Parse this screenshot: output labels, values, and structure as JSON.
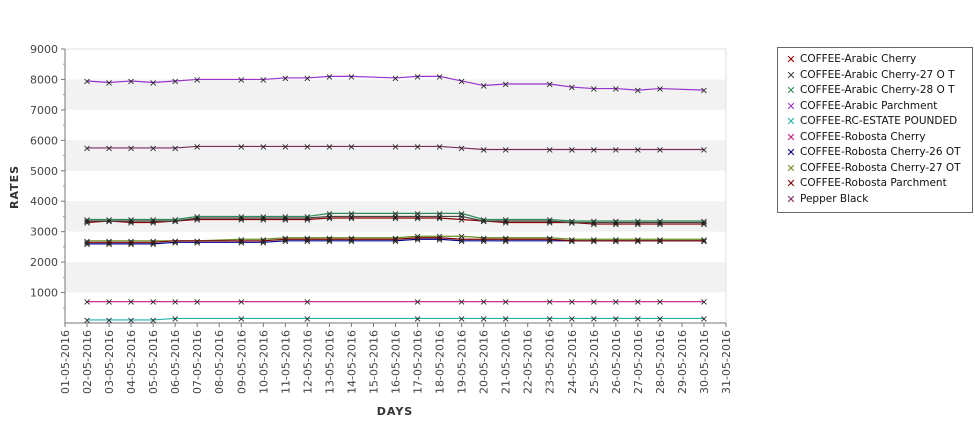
{
  "chart_data": {
    "type": "line",
    "title": "",
    "xlabel": "DAYS",
    "ylabel": "RATES",
    "ylim": [
      0,
      9000
    ],
    "yticks": [
      1000,
      2000,
      3000,
      4000,
      5000,
      6000,
      7000,
      8000,
      9000
    ],
    "x_ticks": [
      "01-05-2016",
      "02-05-2016",
      "03-05-2016",
      "04-05-2016",
      "05-05-2016",
      "06-05-2016",
      "07-05-2016",
      "08-05-2016",
      "09-05-2016",
      "10-05-2016",
      "11-05-2016",
      "12-05-2016",
      "13-05-2016",
      "14-05-2016",
      "15-05-2016",
      "16-05-2016",
      "17-05-2016",
      "18-05-2016",
      "19-05-2016",
      "20-05-2016",
      "21-05-2016",
      "22-05-2016",
      "23-05-2016",
      "24-05-2016",
      "25-05-2016",
      "26-05-2016",
      "27-05-2016",
      "28-05-2016",
      "29-05-2016",
      "30-05-2016",
      "31-05-2016"
    ],
    "grid": "alternating horizontal bands",
    "legend_position": "right",
    "series": [
      {
        "name": "COFFEE-Arabic Cherry",
        "color": "#8b0000",
        "x": [
          "02-05-2016",
          "03-05-2016",
          "04-05-2016",
          "05-05-2016",
          "06-05-2016",
          "07-05-2016",
          "09-05-2016",
          "10-05-2016",
          "11-05-2016",
          "12-05-2016",
          "13-05-2016",
          "14-05-2016",
          "16-05-2016",
          "17-05-2016",
          "18-05-2016",
          "19-05-2016",
          "20-05-2016",
          "21-05-2016",
          "23-05-2016",
          "24-05-2016",
          "25-05-2016",
          "26-05-2016",
          "27-05-2016",
          "28-05-2016",
          "30-05-2016"
        ],
        "y": [
          3300,
          3350,
          3300,
          3300,
          3350,
          3400,
          3400,
          3400,
          3400,
          3400,
          3450,
          3450,
          3450,
          3450,
          3450,
          3400,
          3350,
          3300,
          3300,
          3300,
          3250,
          3250,
          3250,
          3250,
          3250
        ]
      },
      {
        "name": "COFFEE-Arabic Cherry-27 O T",
        "color": "#444444",
        "x": [
          "02-05-2016",
          "03-05-2016",
          "04-05-2016",
          "05-05-2016",
          "06-05-2016",
          "07-05-2016",
          "09-05-2016",
          "10-05-2016",
          "11-05-2016",
          "12-05-2016",
          "13-05-2016",
          "14-05-2016",
          "16-05-2016",
          "17-05-2016",
          "18-05-2016",
          "19-05-2016",
          "20-05-2016",
          "21-05-2016",
          "23-05-2016",
          "24-05-2016",
          "25-05-2016",
          "26-05-2016",
          "27-05-2016",
          "28-05-2016",
          "30-05-2016"
        ],
        "y": [
          3350,
          3350,
          3350,
          3350,
          3350,
          3450,
          3450,
          3450,
          3450,
          3450,
          3500,
          3500,
          3500,
          3500,
          3500,
          3500,
          3350,
          3350,
          3350,
          3300,
          3300,
          3300,
          3300,
          3300,
          3300
        ]
      },
      {
        "name": "COFFEE-Arabic Cherry-28 O T",
        "color": "#2e8b57",
        "x": [
          "02-05-2016",
          "03-05-2016",
          "04-05-2016",
          "05-05-2016",
          "06-05-2016",
          "07-05-2016",
          "09-05-2016",
          "10-05-2016",
          "11-05-2016",
          "12-05-2016",
          "13-05-2016",
          "14-05-2016",
          "16-05-2016",
          "17-05-2016",
          "18-05-2016",
          "19-05-2016",
          "20-05-2016",
          "21-05-2016",
          "23-05-2016",
          "24-05-2016",
          "25-05-2016",
          "26-05-2016",
          "27-05-2016",
          "28-05-2016",
          "30-05-2016"
        ],
        "y": [
          3400,
          3400,
          3400,
          3400,
          3400,
          3500,
          3500,
          3500,
          3500,
          3500,
          3600,
          3600,
          3600,
          3600,
          3600,
          3600,
          3400,
          3400,
          3400,
          3350,
          3350,
          3350,
          3350,
          3350,
          3350
        ]
      },
      {
        "name": "COFFEE-Arabic Parchment",
        "color": "#9932cc",
        "x": [
          "02-05-2016",
          "03-05-2016",
          "04-05-2016",
          "05-05-2016",
          "06-05-2016",
          "07-05-2016",
          "09-05-2016",
          "10-05-2016",
          "11-05-2016",
          "12-05-2016",
          "13-05-2016",
          "14-05-2016",
          "16-05-2016",
          "17-05-2016",
          "18-05-2016",
          "19-05-2016",
          "20-05-2016",
          "21-05-2016",
          "23-05-2016",
          "24-05-2016",
          "25-05-2016",
          "26-05-2016",
          "27-05-2016",
          "28-05-2016",
          "30-05-2016"
        ],
        "y": [
          7950,
          7900,
          7950,
          7900,
          7950,
          8000,
          8000,
          8000,
          8050,
          8050,
          8100,
          8100,
          8050,
          8100,
          8100,
          7950,
          7800,
          7850,
          7850,
          7750,
          7700,
          7700,
          7650,
          7700,
          7650
        ]
      },
      {
        "name": "COFFEE-RC-ESTATE POUNDED",
        "color": "#20b2aa",
        "x": [
          "02-05-2016",
          "03-05-2016",
          "04-05-2016",
          "05-05-2016",
          "06-05-2016",
          "09-05-2016",
          "12-05-2016",
          "17-05-2016",
          "19-05-2016",
          "20-05-2016",
          "21-05-2016",
          "23-05-2016",
          "24-05-2016",
          "25-05-2016",
          "26-05-2016",
          "27-05-2016",
          "28-05-2016",
          "30-05-2016"
        ],
        "y": [
          100,
          100,
          100,
          100,
          150,
          150,
          150,
          150,
          150,
          150,
          150,
          150,
          150,
          150,
          150,
          150,
          150,
          150
        ]
      },
      {
        "name": "COFFEE-Robosta Cherry",
        "color": "#c71585",
        "x": [
          "02-05-2016",
          "03-05-2016",
          "04-05-2016",
          "05-05-2016",
          "06-05-2016",
          "07-05-2016",
          "09-05-2016",
          "12-05-2016",
          "17-05-2016",
          "19-05-2016",
          "20-05-2016",
          "21-05-2016",
          "23-05-2016",
          "24-05-2016",
          "25-05-2016",
          "26-05-2016",
          "27-05-2016",
          "28-05-2016",
          "30-05-2016"
        ],
        "y": [
          700,
          700,
          700,
          700,
          700,
          700,
          700,
          700,
          700,
          700,
          700,
          700,
          700,
          700,
          700,
          700,
          700,
          700,
          700
        ]
      },
      {
        "name": "COFFEE-Robosta Cherry-26 OT",
        "color": "#00008b",
        "x": [
          "02-05-2016",
          "03-05-2016",
          "04-05-2016",
          "05-05-2016",
          "06-05-2016",
          "07-05-2016",
          "09-05-2016",
          "10-05-2016",
          "11-05-2016",
          "12-05-2016",
          "13-05-2016",
          "14-05-2016",
          "16-05-2016",
          "17-05-2016",
          "18-05-2016",
          "19-05-2016",
          "20-05-2016",
          "21-05-2016",
          "23-05-2016",
          "24-05-2016",
          "25-05-2016",
          "26-05-2016",
          "27-05-2016",
          "28-05-2016",
          "30-05-2016"
        ],
        "y": [
          2600,
          2600,
          2600,
          2600,
          2650,
          2650,
          2650,
          2650,
          2700,
          2700,
          2700,
          2700,
          2700,
          2750,
          2750,
          2700,
          2700,
          2700,
          2700,
          2700,
          2700,
          2700,
          2700,
          2700,
          2700
        ]
      },
      {
        "name": "COFFEE-Robosta Cherry-27 OT",
        "color": "#6b8e23",
        "x": [
          "02-05-2016",
          "03-05-2016",
          "04-05-2016",
          "05-05-2016",
          "06-05-2016",
          "07-05-2016",
          "09-05-2016",
          "10-05-2016",
          "11-05-2016",
          "12-05-2016",
          "13-05-2016",
          "14-05-2016",
          "16-05-2016",
          "17-05-2016",
          "18-05-2016",
          "19-05-2016",
          "20-05-2016",
          "21-05-2016",
          "23-05-2016",
          "24-05-2016",
          "25-05-2016",
          "26-05-2016",
          "27-05-2016",
          "28-05-2016",
          "30-05-2016"
        ],
        "y": [
          2700,
          2700,
          2700,
          2700,
          2700,
          2700,
          2750,
          2750,
          2800,
          2800,
          2800,
          2800,
          2800,
          2850,
          2850,
          2850,
          2800,
          2800,
          2800,
          2750,
          2750,
          2750,
          2750,
          2750,
          2750
        ]
      },
      {
        "name": "COFFEE-Robosta Parchment",
        "color": "#800000",
        "x": [
          "02-05-2016",
          "03-05-2016",
          "04-05-2016",
          "05-05-2016",
          "06-05-2016",
          "07-05-2016",
          "09-05-2016",
          "10-05-2016",
          "11-05-2016",
          "12-05-2016",
          "13-05-2016",
          "14-05-2016",
          "16-05-2016",
          "17-05-2016",
          "18-05-2016",
          "19-05-2016",
          "20-05-2016",
          "21-05-2016",
          "23-05-2016",
          "24-05-2016",
          "25-05-2016",
          "26-05-2016",
          "27-05-2016",
          "28-05-2016",
          "30-05-2016"
        ],
        "y": [
          2650,
          2650,
          2650,
          2650,
          2700,
          2700,
          2700,
          2700,
          2750,
          2750,
          2750,
          2750,
          2750,
          2800,
          2800,
          2750,
          2750,
          2750,
          2750,
          2700,
          2700,
          2700,
          2700,
          2700,
          2700
        ]
      },
      {
        "name": "Pepper Black",
        "color": "#7b2d5a",
        "x": [
          "02-05-2016",
          "03-05-2016",
          "04-05-2016",
          "05-05-2016",
          "06-05-2016",
          "07-05-2016",
          "09-05-2016",
          "10-05-2016",
          "11-05-2016",
          "12-05-2016",
          "13-05-2016",
          "14-05-2016",
          "16-05-2016",
          "17-05-2016",
          "18-05-2016",
          "19-05-2016",
          "20-05-2016",
          "21-05-2016",
          "23-05-2016",
          "24-05-2016",
          "25-05-2016",
          "26-05-2016",
          "27-05-2016",
          "28-05-2016",
          "30-05-2016"
        ],
        "y": [
          5750,
          5750,
          5750,
          5750,
          5750,
          5800,
          5800,
          5800,
          5800,
          5800,
          5800,
          5800,
          5800,
          5800,
          5800,
          5750,
          5700,
          5700,
          5700,
          5700,
          5700,
          5700,
          5700,
          5700,
          5700
        ]
      }
    ]
  }
}
